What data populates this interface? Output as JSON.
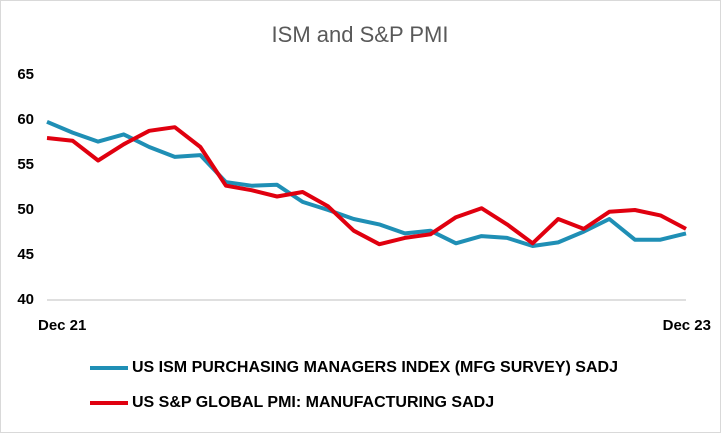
{
  "chart_data": {
    "type": "line",
    "title": "ISM and S&P PMI",
    "categories": [
      "Dec 21",
      null,
      null,
      null,
      null,
      null,
      null,
      null,
      null,
      null,
      null,
      null,
      null,
      null,
      null,
      null,
      null,
      null,
      null,
      null,
      null,
      null,
      null,
      null,
      null,
      "Dec 23"
    ],
    "series": [
      {
        "name": "US ISM PURCHASING MANAGERS INDEX (MFG SURVEY) SADJ",
        "color": "#1f8fb5",
        "values": [
          59.8,
          58.6,
          57.6,
          58.4,
          57.0,
          55.9,
          56.1,
          53.1,
          52.7,
          52.8,
          50.9,
          50.0,
          49.0,
          48.4,
          47.4,
          47.7,
          46.3,
          47.1,
          46.9,
          46.0,
          46.4,
          47.6,
          49.0,
          46.7,
          46.7,
          47.4
        ]
      },
      {
        "name": "US S&P GLOBAL PMI: MANUFACTURING SADJ",
        "color": "#e0000f",
        "values": [
          58.0,
          57.7,
          55.5,
          57.3,
          58.8,
          59.2,
          57.0,
          52.7,
          52.2,
          51.5,
          52.0,
          50.4,
          47.7,
          46.2,
          46.9,
          47.3,
          49.2,
          50.2,
          48.4,
          46.3,
          49.0,
          47.9,
          49.8,
          50.0,
          49.4,
          47.9
        ]
      }
    ],
    "ylim": [
      40,
      65
    ],
    "yticks": [
      40,
      45,
      50,
      55,
      60,
      65
    ],
    "grid": false
  }
}
